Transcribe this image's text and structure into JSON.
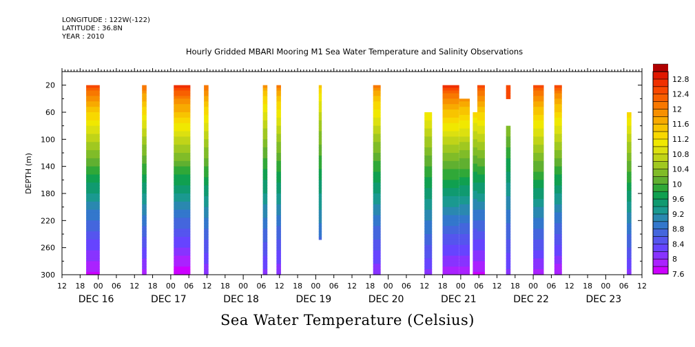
{
  "meta": {
    "longitude": "LONGITUDE : 122W(-122)",
    "latitude": "LATITUDE : 36.8N",
    "year": "YEAR : 2010"
  },
  "chart_data": {
    "type": "heatmap",
    "title": "Hourly Gridded MBARI Mooring M1 Sea Water Temperature and Salinity Observations",
    "xlabel": "Sea Water Temperature (Celsius)",
    "ylabel": "DEPTH (m)",
    "ylim": [
      300,
      0
    ],
    "xlim_hours": [
      12,
      204
    ],
    "y_ticks": [
      20,
      60,
      100,
      140,
      180,
      220,
      260,
      300
    ],
    "x_tick_hour_labels": [
      "12",
      "18",
      "00",
      "06",
      "12",
      "18",
      "00",
      "06",
      "12",
      "18",
      "00",
      "06",
      "12",
      "18",
      "00",
      "06",
      "12",
      "18",
      "00",
      "06",
      "12",
      "18",
      "00",
      "06",
      "12",
      "18",
      "00",
      "06",
      "12",
      "18",
      "00",
      "06",
      "12"
    ],
    "date_labels": [
      "DEC 16",
      "DEC 17",
      "DEC 18",
      "DEC 19",
      "DEC 20",
      "DEC 21",
      "DEC 22",
      "DEC 23"
    ],
    "colorbar": {
      "min": 7.6,
      "max": 13.0,
      "step": 0.2,
      "tick_labels": [
        "12.8",
        "12.4",
        "12",
        "11.6",
        "11.2",
        "10.8",
        "10.4",
        "10",
        "9.6",
        "9.2",
        "8.8",
        "8.4",
        "8",
        "7.6"
      ],
      "colors": [
        "#cc00ff",
        "#aa22ff",
        "#8833ff",
        "#6644ff",
        "#5555ee",
        "#4466dd",
        "#3377cc",
        "#2a88b0",
        "#1a9990",
        "#109a70",
        "#10a050",
        "#30a838",
        "#60b030",
        "#80bc28",
        "#a0c820",
        "#c0d418",
        "#dce010",
        "#f0e800",
        "#f8d800",
        "#f8c400",
        "#f8aa00",
        "#f89000",
        "#f87800",
        "#f86000",
        "#f84800",
        "#f03000",
        "#e01800",
        "#b00000"
      ]
    },
    "columns": [
      {
        "t0": 20,
        "t1": 24.5,
        "top": 20,
        "bottom": 300,
        "surface": 12.5,
        "bottom_temp": 7.7
      },
      {
        "t0": 38.5,
        "t1": 40,
        "top": 20,
        "bottom": 300,
        "surface": 12.2,
        "bottom_temp": 7.9
      },
      {
        "t0": 49,
        "t1": 54.5,
        "top": 20,
        "bottom": 300,
        "surface": 12.7,
        "bottom_temp": 7.6
      },
      {
        "t0": 59,
        "t1": 60.5,
        "top": 20,
        "bottom": 300,
        "surface": 12.2,
        "bottom_temp": 8.0
      },
      {
        "t0": 78.5,
        "t1": 80,
        "top": 20,
        "bottom": 300,
        "surface": 11.8,
        "bottom_temp": 8.1
      },
      {
        "t0": 83,
        "t1": 84.5,
        "top": 20,
        "bottom": 300,
        "surface": 12.0,
        "bottom_temp": 8.0
      },
      {
        "t0": 97,
        "t1": 98,
        "top": 20,
        "bottom": 248,
        "surface": 11.5,
        "bottom_temp": 8.3
      },
      {
        "t0": 115,
        "t1": 117.5,
        "top": 20,
        "bottom": 300,
        "surface": 12.0,
        "bottom_temp": 8.0
      },
      {
        "t0": 132,
        "t1": 134.5,
        "top": 60,
        "bottom": 300,
        "surface": 12.1,
        "bottom_temp": 8.1
      },
      {
        "t0": 138,
        "t1": 143.5,
        "top": 20,
        "bottom": 300,
        "surface": 12.6,
        "bottom_temp": 7.8
      },
      {
        "t0": 143.5,
        "t1": 147,
        "top": 40,
        "bottom": 300,
        "surface": 12.5,
        "bottom_temp": 7.8
      },
      {
        "t0": 148,
        "t1": 149.5,
        "top": 60,
        "bottom": 300,
        "surface": 12.4,
        "bottom_temp": 7.7
      },
      {
        "t0": 149.5,
        "t1": 152,
        "top": 20,
        "bottom": 300,
        "surface": 12.5,
        "bottom_temp": 7.7
      },
      {
        "t0": 159,
        "t1": 160.5,
        "top": 20,
        "bottom": 40,
        "surface": 12.5,
        "bottom_temp": 12.4
      },
      {
        "t0": 159,
        "t1": 160.5,
        "top": 80,
        "bottom": 300,
        "surface": 11.4,
        "bottom_temp": 8.1
      },
      {
        "t0": 168,
        "t1": 171.5,
        "top": 20,
        "bottom": 300,
        "surface": 12.5,
        "bottom_temp": 7.9
      },
      {
        "t0": 175,
        "t1": 177.5,
        "top": 20,
        "bottom": 300,
        "surface": 12.4,
        "bottom_temp": 7.8
      },
      {
        "t0": 199,
        "t1": 200.5,
        "top": 60,
        "bottom": 300,
        "surface": 12.3,
        "bottom_temp": 8.1
      }
    ]
  }
}
